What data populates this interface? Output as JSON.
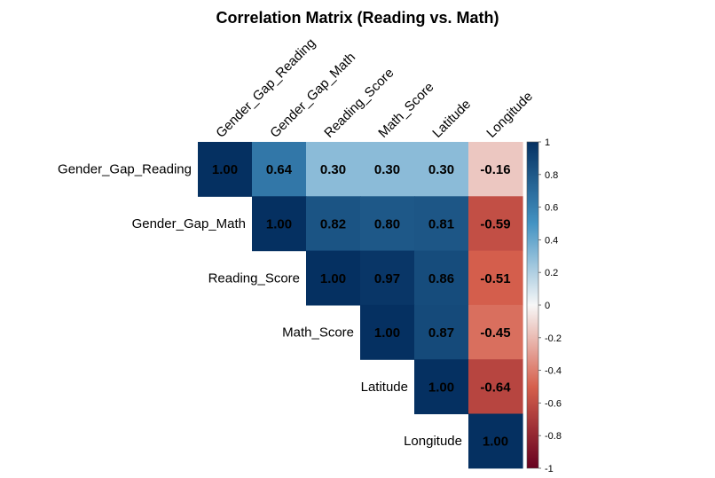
{
  "chart_data": {
    "type": "heatmap",
    "title": "Correlation Matrix (Reading vs. Math)",
    "variables": [
      "Gender_Gap_Reading",
      "Gender_Gap_Math",
      "Reading_Score",
      "Math_Score",
      "Latitude",
      "Longitude"
    ],
    "matrix_upper": [
      [
        1.0,
        0.64,
        0.3,
        0.3,
        0.3,
        -0.16
      ],
      [
        null,
        1.0,
        0.82,
        0.8,
        0.81,
        -0.59
      ],
      [
        null,
        null,
        1.0,
        0.97,
        0.86,
        -0.51
      ],
      [
        null,
        null,
        null,
        1.0,
        0.87,
        -0.45
      ],
      [
        null,
        null,
        null,
        null,
        1.0,
        -0.64
      ],
      [
        null,
        null,
        null,
        null,
        null,
        1.0
      ]
    ],
    "value_format": "2dp",
    "colorbar": {
      "range": [
        -1,
        1
      ],
      "ticks": [
        "1",
        "0.8",
        "0.6",
        "0.4",
        "0.2",
        "0",
        "-0.2",
        "-0.4",
        "-0.6",
        "-0.8",
        "-1"
      ],
      "colors": {
        "neg_end": "#67001F",
        "neg_mid": "#D6604D",
        "zero": "#F7F7F7",
        "pos_mid": "#4393C3",
        "pos_end": "#053061"
      }
    },
    "legend_position": "right",
    "grid": false
  }
}
